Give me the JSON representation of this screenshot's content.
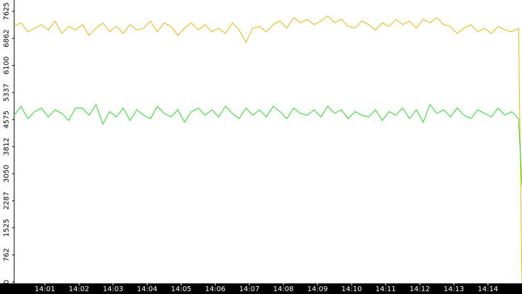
{
  "chart_data": {
    "type": "line",
    "x": [
      0.1,
      0.3,
      0.5,
      0.7,
      0.9,
      1.1,
      1.3,
      1.5,
      1.7,
      1.9,
      2.1,
      2.3,
      2.5,
      2.7,
      2.9,
      3.1,
      3.3,
      3.5,
      3.7,
      3.9,
      4.1,
      4.3,
      4.5,
      4.7,
      4.9,
      5.1,
      5.3,
      5.5,
      5.7,
      5.9,
      6.1,
      6.3,
      6.5,
      6.7,
      6.9,
      7.1,
      7.3,
      7.5,
      7.7,
      7.9,
      8.1,
      8.3,
      8.5,
      8.7,
      8.9,
      9.1,
      9.3,
      9.5,
      9.7,
      9.9,
      10.1,
      10.3,
      10.5,
      10.7,
      10.9,
      11.1,
      11.3,
      11.5,
      11.7,
      11.9,
      12.1,
      12.3,
      12.5,
      12.7,
      12.9,
      13.1,
      13.3,
      13.5,
      13.7,
      13.9,
      14.1,
      14.3,
      14.5,
      14.7,
      14.9,
      15.0
    ],
    "series": [
      {
        "color": "#f0b400",
        "values": [
          7200,
          7300,
          7050,
          7150,
          7250,
          7100,
          7350,
          7000,
          7200,
          7100,
          7250,
          6950,
          7150,
          7300,
          7050,
          7200,
          7000,
          7250,
          7100,
          7150,
          7350,
          7050,
          7300,
          7200,
          6950,
          7150,
          7300,
          7100,
          7250,
          7050,
          7150,
          7000,
          7300,
          7100,
          6750,
          7150,
          7200,
          7050,
          7250,
          7350,
          7150,
          7450,
          7300,
          7400,
          7250,
          7350,
          7500,
          7300,
          7400,
          7200,
          7150,
          7350,
          7250,
          7100,
          7300,
          7200,
          7400,
          7250,
          7350,
          7150,
          7400,
          7300,
          7450,
          7250,
          7200,
          7000,
          7150,
          7250,
          7050,
          7150,
          7000,
          7200,
          7100,
          7050,
          7150,
          0
        ]
      },
      {
        "color": "#22dd22",
        "values": [
          4700,
          4950,
          4600,
          4800,
          4900,
          4650,
          4850,
          4750,
          4550,
          4900,
          4900,
          4700,
          5000,
          4450,
          4800,
          4650,
          4900,
          4550,
          4850,
          4700,
          4600,
          4950,
          4750,
          4650,
          4850,
          4500,
          4800,
          4900,
          4700,
          4850,
          4650,
          4950,
          4750,
          4600,
          4900,
          4700,
          4850,
          4650,
          4950,
          4800,
          4600,
          4900,
          4750,
          4700,
          4850,
          4650,
          4950,
          4750,
          4850,
          4600,
          4800,
          4700,
          4650,
          4850,
          4550,
          4800,
          4700,
          4900,
          4600,
          4850,
          4500,
          5000,
          4750,
          4850,
          4650,
          4900,
          4700,
          4600,
          4850,
          4750,
          4650,
          4900,
          4700,
          4800,
          4600,
          2700
        ]
      }
    ],
    "xlim": [
      0.1,
      15.0
    ],
    "xticks": [
      {
        "value": 1,
        "label": "14:01"
      },
      {
        "value": 2,
        "label": "14:02"
      },
      {
        "value": 3,
        "label": "14:03"
      },
      {
        "value": 4,
        "label": "14:04"
      },
      {
        "value": 5,
        "label": "14:05"
      },
      {
        "value": 6,
        "label": "14:06"
      },
      {
        "value": 7,
        "label": "14:07"
      },
      {
        "value": 8,
        "label": "14:08"
      },
      {
        "value": 9,
        "label": "14:09"
      },
      {
        "value": 10,
        "label": "14:10"
      },
      {
        "value": 11,
        "label": "14:11"
      },
      {
        "value": 12,
        "label": "14:12"
      },
      {
        "value": 13,
        "label": "14:13"
      },
      {
        "value": 14,
        "label": "14:14"
      }
    ],
    "ylim": [
      0,
      7625
    ],
    "yticks": [
      0,
      762,
      1525,
      2287,
      3050,
      3812,
      4575,
      5337,
      6100,
      6862,
      7625
    ]
  }
}
